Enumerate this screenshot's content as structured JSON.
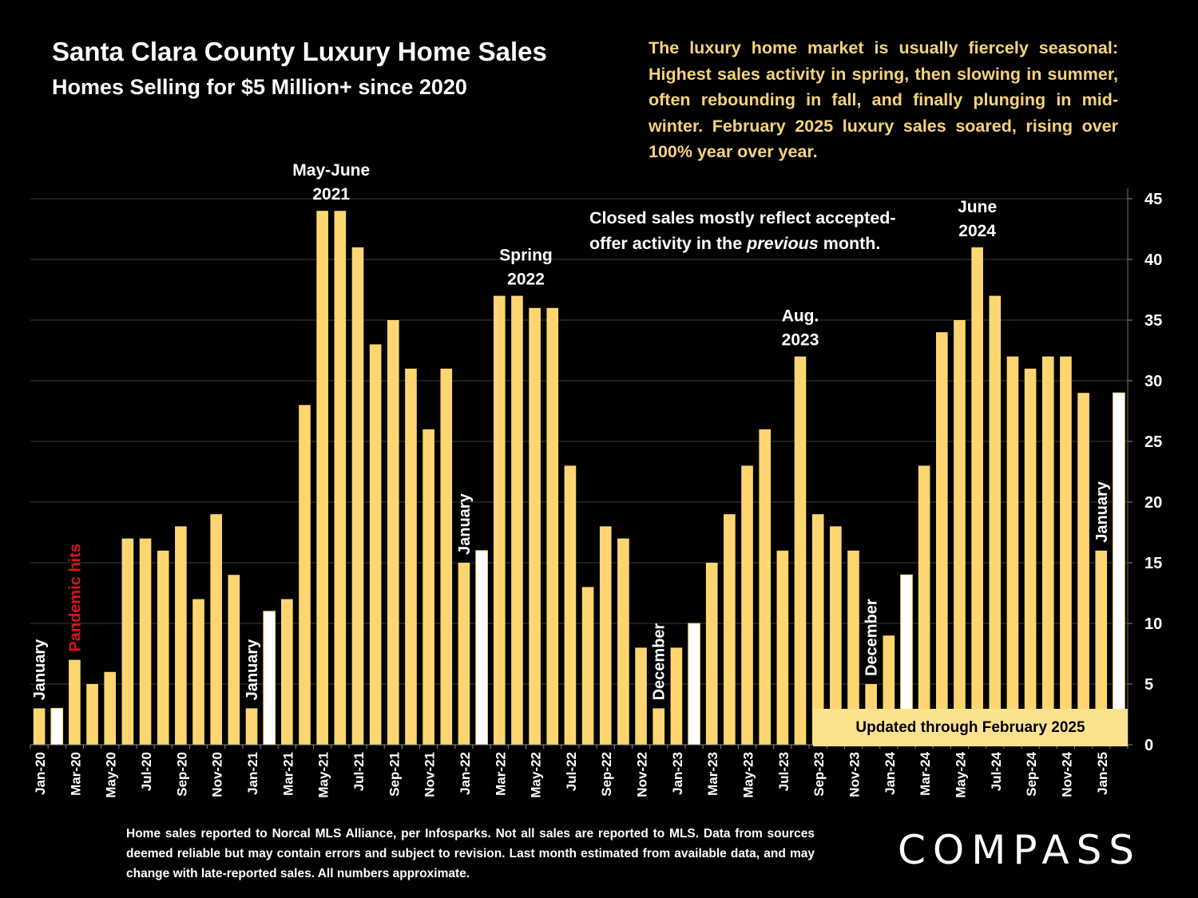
{
  "header": {
    "title": "Santa Clara County Luxury Home Sales",
    "subtitle": "Homes Selling for $5 Million+ since 2020"
  },
  "callouts": {
    "seasonal": "The luxury home market is usually fiercely seasonal: Highest sales activity in spring, then slowing in summer, often rebounding in fall, and finally plunging in mid-winter.  February 2025 luxury sales soared, rising over 100% year over year.",
    "closed_line1": "Closed sales mostly reflect accepted-",
    "closed_line2_a": "offer activity in the ",
    "closed_line2_b": "previous",
    "closed_line2_c": " month.",
    "updated": "Updated through February 2025"
  },
  "footer": {
    "note": "Home sales reported to Norcal MLS Alliance, per Infosparks. Not all sales are reported to MLS. Data from sources deemed reliable but may contain errors and subject to revision.  Last month estimated from available data, and may change with late-reported sales. All numbers approximate.",
    "logo": "COMPASS"
  },
  "colors": {
    "background": "#000000",
    "bar": "#fdd672",
    "bar_highlight": "#ffffff",
    "grid": "#3a3a3a",
    "annotation_red": "#d9141c",
    "callout_text": "#f6d37a"
  },
  "chart_data": {
    "type": "bar",
    "title": "Santa Clara County Luxury Home Sales",
    "subtitle": "Homes Selling for $5 Million+ since 2020",
    "ylim": [
      0,
      45
    ],
    "y_ticks": [
      0,
      5,
      10,
      15,
      20,
      25,
      30,
      35,
      40,
      45
    ],
    "y_axis_side": "right",
    "grid": true,
    "categories": [
      "Jan-20",
      "Feb-20",
      "Mar-20",
      "Apr-20",
      "May-20",
      "Jun-20",
      "Jul-20",
      "Aug-20",
      "Sep-20",
      "Oct-20",
      "Nov-20",
      "Dec-20",
      "Jan-21",
      "Feb-21",
      "Mar-21",
      "Apr-21",
      "May-21",
      "Jun-21",
      "Jul-21",
      "Aug-21",
      "Sep-21",
      "Oct-21",
      "Nov-21",
      "Dec-21",
      "Jan-22",
      "Feb-22",
      "Mar-22",
      "Apr-22",
      "May-22",
      "Jun-22",
      "Jul-22",
      "Aug-22",
      "Sep-22",
      "Oct-22",
      "Nov-22",
      "Dec-22",
      "Jan-23",
      "Feb-23",
      "Mar-23",
      "Apr-23",
      "May-23",
      "Jun-23",
      "Jul-23",
      "Aug-23",
      "Sep-23",
      "Oct-23",
      "Nov-23",
      "Dec-23",
      "Jan-24",
      "Feb-24",
      "Mar-24",
      "Apr-24",
      "May-24",
      "Jun-24",
      "Jul-24",
      "Aug-24",
      "Sep-24",
      "Oct-24",
      "Nov-24",
      "Dec-24",
      "Jan-25",
      "Feb-25"
    ],
    "x_tick_labels": [
      "Jan-20",
      "Mar-20",
      "May-20",
      "Jul-20",
      "Sep-20",
      "Nov-20",
      "Jan-21",
      "Mar-21",
      "May-21",
      "Jul-21",
      "Sep-21",
      "Nov-21",
      "Jan-22",
      "Mar-22",
      "May-22",
      "Jul-22",
      "Sep-22",
      "Nov-22",
      "Jan-23",
      "Mar-23",
      "May-23",
      "Jul-23",
      "Sep-23",
      "Nov-23",
      "Jan-24",
      "Mar-24",
      "May-24",
      "Jul-24",
      "Sep-24",
      "Nov-24",
      "Jan-25"
    ],
    "values": [
      3,
      3,
      7,
      5,
      6,
      17,
      17,
      16,
      18,
      12,
      19,
      14,
      3,
      11,
      12,
      28,
      44,
      44,
      41,
      33,
      35,
      31,
      26,
      31,
      15,
      16,
      37,
      37,
      36,
      36,
      23,
      13,
      18,
      17,
      8,
      3,
      8,
      10,
      15,
      19,
      23,
      26,
      16,
      32,
      19,
      18,
      16,
      5,
      9,
      14,
      23,
      34,
      35,
      41,
      37,
      32,
      31,
      32,
      32,
      29,
      16,
      29
    ],
    "highlight_indices": [
      1,
      13,
      25,
      37,
      49,
      61
    ],
    "annotations": [
      {
        "text": "January",
        "index": 0,
        "orientation": "vertical",
        "color": "#ffffff"
      },
      {
        "text": "Pandemic hits",
        "index": 2,
        "orientation": "vertical",
        "color": "#d9141c"
      },
      {
        "text": "January",
        "index": 12,
        "orientation": "vertical",
        "color": "#ffffff"
      },
      {
        "text": "May-June\n2021",
        "index": 16.5,
        "orientation": "horizontal",
        "color": "#ffffff"
      },
      {
        "text": "January",
        "index": 24,
        "orientation": "vertical",
        "color": "#ffffff"
      },
      {
        "text": "Spring\n2022",
        "index": 27.5,
        "orientation": "horizontal",
        "color": "#ffffff"
      },
      {
        "text": "December",
        "index": 35,
        "orientation": "vertical",
        "color": "#ffffff"
      },
      {
        "text": "Aug.\n2023",
        "index": 43,
        "orientation": "horizontal",
        "color": "#ffffff"
      },
      {
        "text": "December",
        "index": 47,
        "orientation": "vertical",
        "color": "#ffffff"
      },
      {
        "text": "June\n2024",
        "index": 53,
        "orientation": "horizontal",
        "color": "#ffffff"
      },
      {
        "text": "January",
        "index": 60,
        "orientation": "vertical",
        "color": "#ffffff"
      }
    ]
  }
}
